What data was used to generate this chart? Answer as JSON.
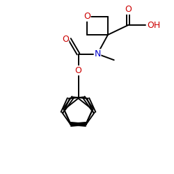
{
  "bg_color": "#ffffff",
  "atom_color_O": "#cc0000",
  "atom_color_N": "#0000cc",
  "atom_color_C": "#000000",
  "bond_color": "#000000",
  "bond_lw": 1.4,
  "figsize": [
    2.5,
    2.5
  ],
  "dpi": 100,
  "xlim": [
    0,
    10
  ],
  "ylim": [
    0,
    10
  ]
}
